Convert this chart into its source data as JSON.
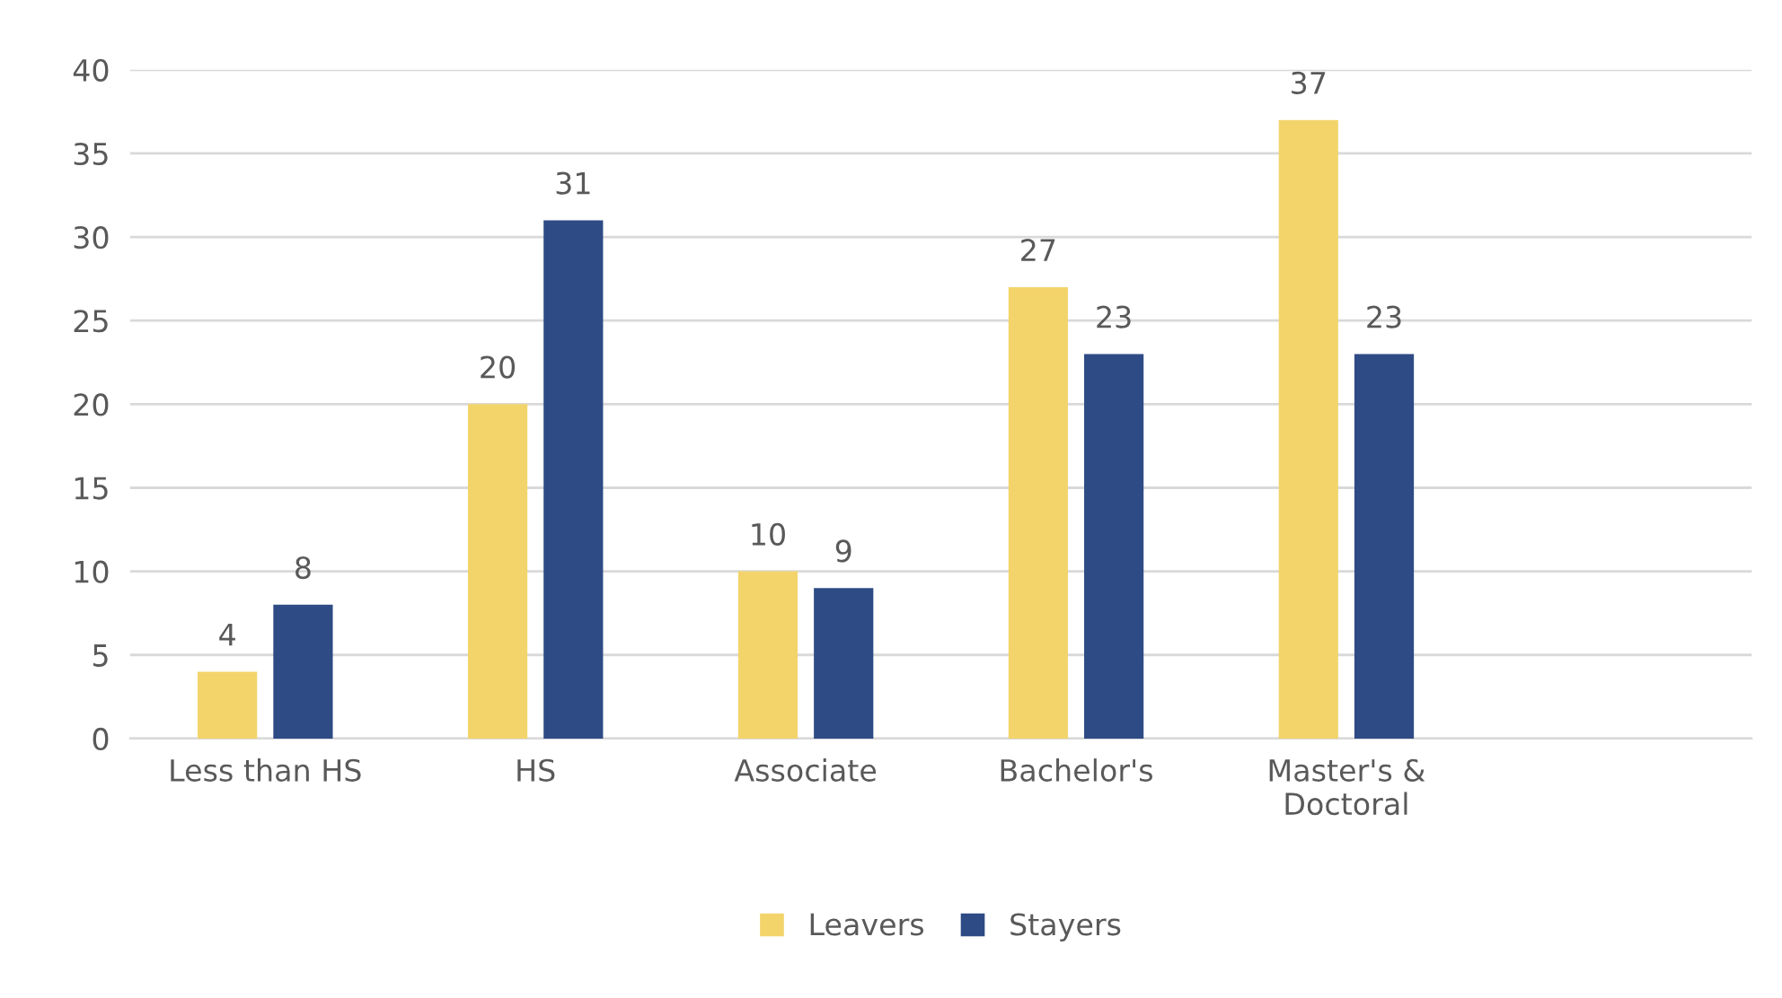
{
  "chart_data": {
    "type": "bar",
    "categories": [
      "Less than HS",
      "HS",
      "Associate",
      "Bachelor's",
      "Master's &\nDoctoral",
      null
    ],
    "series": [
      {
        "name": "Leavers",
        "color": "#f3d46b",
        "values": [
          4,
          20,
          10,
          27,
          37,
          null
        ]
      },
      {
        "name": "Stayers",
        "color": "#2e4b85",
        "values": [
          8,
          31,
          9,
          23,
          23,
          null
        ]
      }
    ],
    "ylim": [
      0,
      40
    ],
    "yticks": [
      0,
      5,
      10,
      15,
      20,
      25,
      30,
      35,
      40
    ],
    "grid": "y",
    "legend": "bottom",
    "data_labels": true
  }
}
